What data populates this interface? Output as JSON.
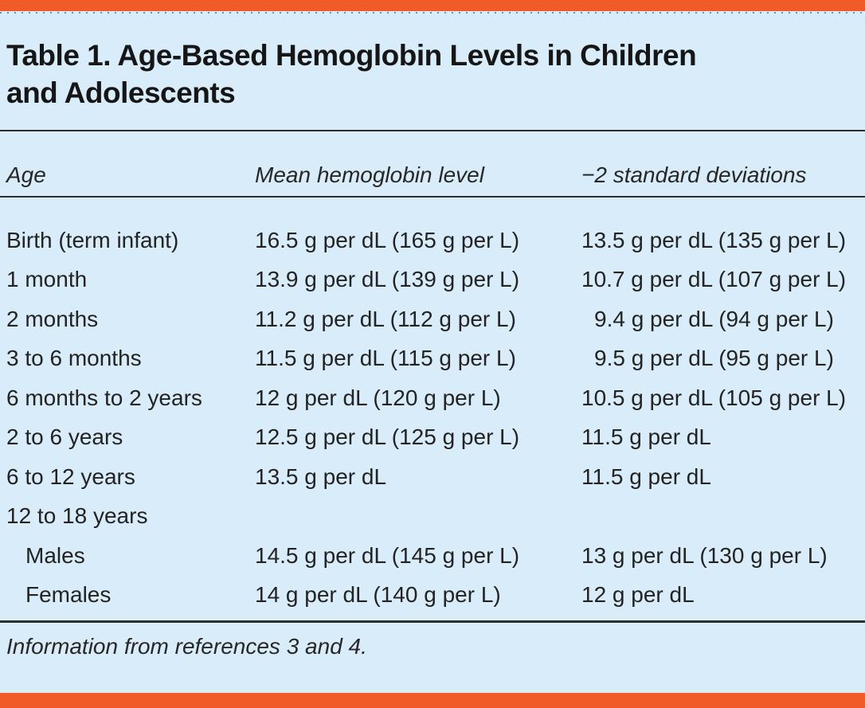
{
  "colors": {
    "accent_orange": "#f15a29",
    "background_blue": "#d8ecf9",
    "rule_dark": "#2e2e2e",
    "text_dark": "#232323"
  },
  "chart_data": {
    "type": "table",
    "title": "Table 1. Age-Based Hemoglobin Levels in Children and Adolescents",
    "title_lines": [
      "Table 1. Age-Based Hemoglobin Levels in Children",
      "and Adolescents"
    ],
    "columns": [
      "Age",
      "Mean hemoglobin level",
      "−2 standard deviations"
    ],
    "rows": [
      {
        "age": "Birth (term infant)",
        "mean": "16.5 g per dL (165 g per L)",
        "minus_2sd": "13.5 g per dL (135 g per L)",
        "mean_g_dl": 16.5,
        "minus_2sd_g_dl": 13.5
      },
      {
        "age": "1 month",
        "mean": "13.9 g per dL (139 g per L)",
        "minus_2sd": "10.7 g per dL (107 g per L)",
        "mean_g_dl": 13.9,
        "minus_2sd_g_dl": 10.7
      },
      {
        "age": "2 months",
        "mean": "11.2 g per dL (112 g per L)",
        "minus_2sd": "9.4 g per dL (94 g per L)",
        "mean_g_dl": 11.2,
        "minus_2sd_g_dl": 9.4
      },
      {
        "age": "3 to 6 months",
        "mean": "11.5 g per dL (115 g per L)",
        "minus_2sd": "9.5 g per dL (95 g per L)",
        "mean_g_dl": 11.5,
        "minus_2sd_g_dl": 9.5
      },
      {
        "age": "6 months to 2 years",
        "mean": "12 g per dL (120 g per L)",
        "minus_2sd": "10.5 g per dL (105 g per L)",
        "mean_g_dl": 12,
        "minus_2sd_g_dl": 10.5
      },
      {
        "age": "2 to 6 years",
        "mean": "12.5 g per dL (125 g per L)",
        "minus_2sd": "11.5 g per dL",
        "mean_g_dl": 12.5,
        "minus_2sd_g_dl": 11.5
      },
      {
        "age": "6 to 12 years",
        "mean": "13.5 g per dL",
        "minus_2sd": "11.5 g per dL",
        "mean_g_dl": 13.5,
        "minus_2sd_g_dl": 11.5
      },
      {
        "age": "12 to 18 years",
        "mean": "",
        "minus_2sd": "",
        "mean_g_dl": null,
        "minus_2sd_g_dl": null
      },
      {
        "age": "Males",
        "mean": "14.5 g per dL (145 g per L)",
        "minus_2sd": "13 g per dL (130 g per L)",
        "mean_g_dl": 14.5,
        "minus_2sd_g_dl": 13
      },
      {
        "age": "Females",
        "mean": "14 g per dL (140 g per L)",
        "minus_2sd": "12 g per dL",
        "mean_g_dl": 14,
        "minus_2sd_g_dl": 12
      }
    ],
    "footnote": "Information from references 3 and 4."
  }
}
